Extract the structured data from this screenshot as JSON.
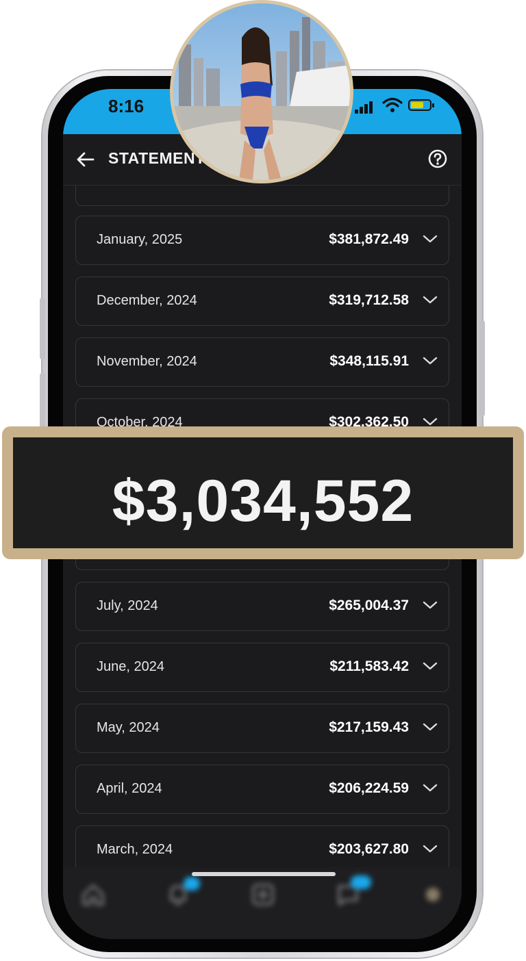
{
  "status_bar": {
    "time": "8:16"
  },
  "header": {
    "title": "STATEMENT"
  },
  "statements": [
    {
      "month": "January, 2025",
      "amount": "$381,872.49"
    },
    {
      "month": "December, 2024",
      "amount": "$319,712.58"
    },
    {
      "month": "November, 2024",
      "amount": "$348,115.91"
    },
    {
      "month": "October, 2024",
      "amount": "$302,362.50"
    },
    {
      "month": "July, 2024",
      "amount": "$265,004.37"
    },
    {
      "month": "June, 2024",
      "amount": "$211,583.42"
    },
    {
      "month": "May, 2024",
      "amount": "$217,159.43"
    },
    {
      "month": "April, 2024",
      "amount": "$206,224.59"
    },
    {
      "month": "March, 2024",
      "amount": "$203,627.80"
    }
  ],
  "banner": {
    "total": "$3,034,552"
  },
  "icons": {
    "back": "arrow-left-icon",
    "help": "help-circle-icon",
    "chevron": "chevron-down-icon",
    "nav": [
      "home-icon",
      "bell-icon",
      "plus-square-icon",
      "chat-icon",
      "profile-icon"
    ]
  },
  "colors": {
    "status_bar": "#18a6e6",
    "banner_border": "#c8b08a",
    "badge": "#1aa8ec"
  }
}
